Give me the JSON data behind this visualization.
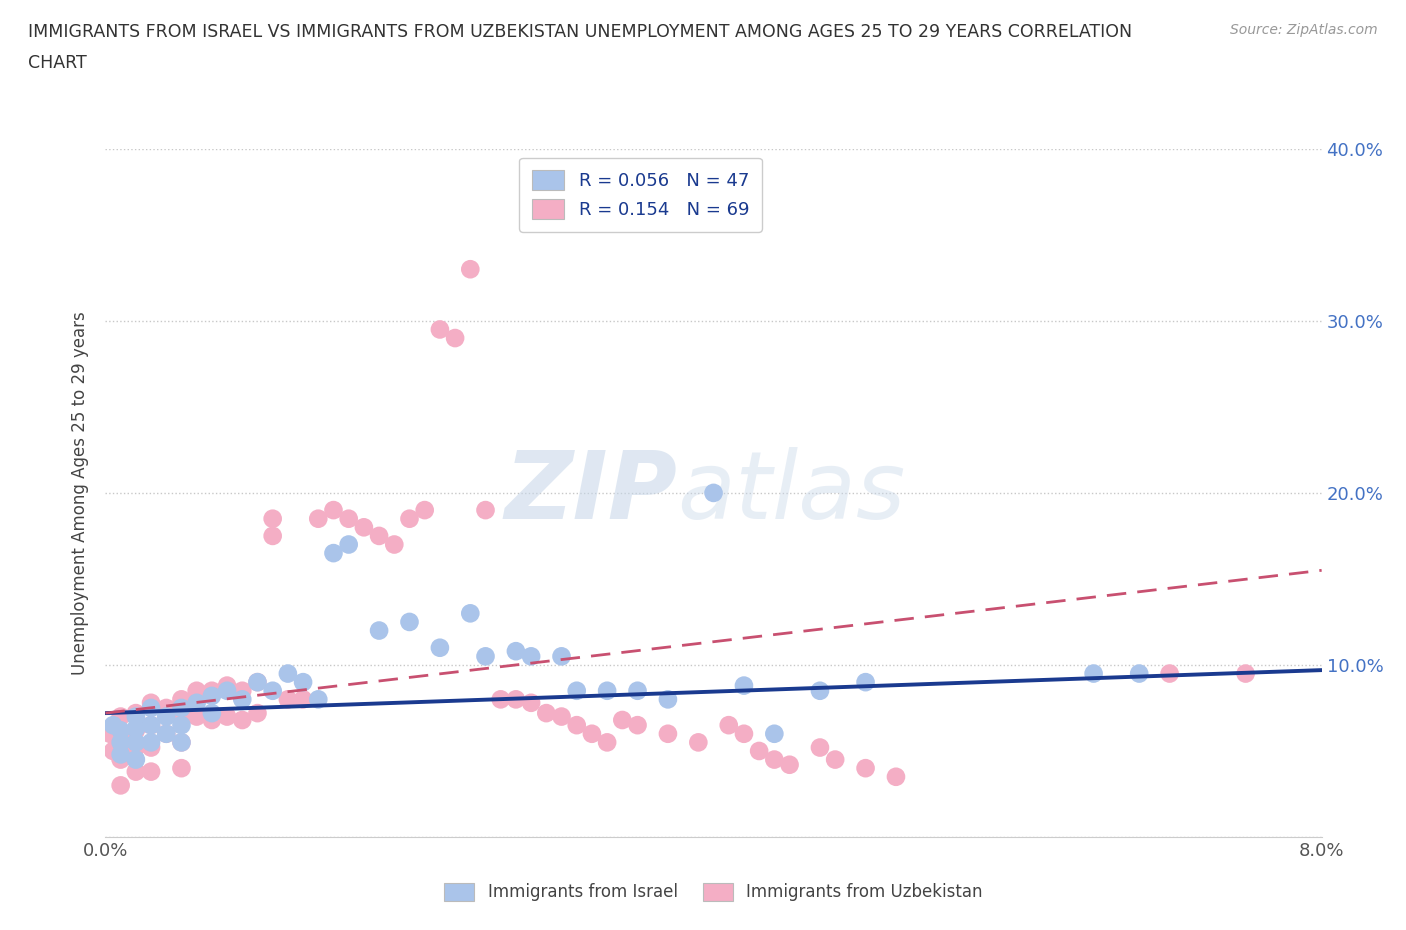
{
  "title_line1": "IMMIGRANTS FROM ISRAEL VS IMMIGRANTS FROM UZBEKISTAN UNEMPLOYMENT AMONG AGES 25 TO 29 YEARS CORRELATION",
  "title_line2": "CHART",
  "source": "Source: ZipAtlas.com",
  "ylabel": "Unemployment Among Ages 25 to 29 years",
  "xlim": [
    0.0,
    0.08
  ],
  "ylim": [
    0.0,
    0.4
  ],
  "israel_color": "#aac4ea",
  "uzbekistan_color": "#f4aec5",
  "israel_line_color": "#1a3a8f",
  "uzbekistan_line_color": "#c85070",
  "legend_label_israel": "Immigrants from Israel",
  "legend_label_uzbekistan": "Immigrants from Uzbekistan",
  "israel_trend_x": [
    0.0,
    0.08
  ],
  "israel_trend_y": [
    0.072,
    0.097
  ],
  "uzbekistan_trend_x": [
    0.0,
    0.08
  ],
  "uzbekistan_trend_y": [
    0.072,
    0.155
  ],
  "israel_x": [
    0.0005,
    0.001,
    0.001,
    0.001,
    0.002,
    0.002,
    0.002,
    0.002,
    0.003,
    0.003,
    0.003,
    0.004,
    0.004,
    0.005,
    0.005,
    0.005,
    0.006,
    0.007,
    0.007,
    0.008,
    0.009,
    0.01,
    0.011,
    0.012,
    0.013,
    0.014,
    0.015,
    0.016,
    0.018,
    0.02,
    0.022,
    0.024,
    0.025,
    0.027,
    0.028,
    0.03,
    0.031,
    0.033,
    0.035,
    0.037,
    0.04,
    0.042,
    0.044,
    0.047,
    0.05,
    0.065,
    0.068
  ],
  "israel_y": [
    0.065,
    0.062,
    0.055,
    0.048,
    0.07,
    0.063,
    0.055,
    0.045,
    0.075,
    0.065,
    0.055,
    0.07,
    0.06,
    0.075,
    0.065,
    0.055,
    0.078,
    0.082,
    0.072,
    0.085,
    0.08,
    0.09,
    0.085,
    0.095,
    0.09,
    0.08,
    0.165,
    0.17,
    0.12,
    0.125,
    0.11,
    0.13,
    0.105,
    0.108,
    0.105,
    0.105,
    0.085,
    0.085,
    0.085,
    0.08,
    0.2,
    0.088,
    0.06,
    0.085,
    0.09,
    0.095,
    0.095
  ],
  "uzbekistan_x": [
    0.0003,
    0.0005,
    0.001,
    0.001,
    0.001,
    0.001,
    0.002,
    0.002,
    0.002,
    0.002,
    0.003,
    0.003,
    0.003,
    0.003,
    0.004,
    0.004,
    0.005,
    0.005,
    0.005,
    0.005,
    0.006,
    0.006,
    0.007,
    0.007,
    0.008,
    0.008,
    0.009,
    0.009,
    0.01,
    0.01,
    0.011,
    0.011,
    0.012,
    0.013,
    0.014,
    0.015,
    0.016,
    0.017,
    0.018,
    0.019,
    0.02,
    0.021,
    0.022,
    0.023,
    0.024,
    0.025,
    0.026,
    0.027,
    0.028,
    0.029,
    0.03,
    0.031,
    0.032,
    0.033,
    0.034,
    0.035,
    0.037,
    0.039,
    0.041,
    0.042,
    0.043,
    0.044,
    0.045,
    0.047,
    0.048,
    0.05,
    0.052,
    0.07,
    0.075
  ],
  "uzbekistan_y": [
    0.06,
    0.05,
    0.07,
    0.06,
    0.045,
    0.03,
    0.072,
    0.062,
    0.052,
    0.038,
    0.078,
    0.065,
    0.052,
    0.038,
    0.075,
    0.06,
    0.08,
    0.068,
    0.055,
    0.04,
    0.085,
    0.07,
    0.085,
    0.068,
    0.088,
    0.07,
    0.085,
    0.068,
    0.09,
    0.072,
    0.185,
    0.175,
    0.08,
    0.08,
    0.185,
    0.19,
    0.185,
    0.18,
    0.175,
    0.17,
    0.185,
    0.19,
    0.295,
    0.29,
    0.33,
    0.19,
    0.08,
    0.08,
    0.078,
    0.072,
    0.07,
    0.065,
    0.06,
    0.055,
    0.068,
    0.065,
    0.06,
    0.055,
    0.065,
    0.06,
    0.05,
    0.045,
    0.042,
    0.052,
    0.045,
    0.04,
    0.035,
    0.095,
    0.095
  ]
}
